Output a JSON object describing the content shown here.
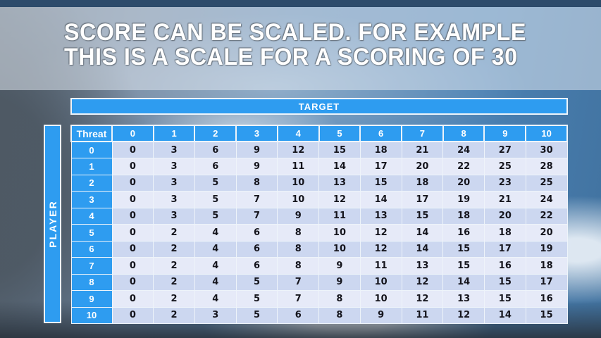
{
  "slide": {
    "title": {
      "line1": "SCORE CAN BE SCALED. FOR EXAMPLE",
      "line2": "THIS IS A SCALE FOR A SCORING OF 30"
    },
    "scoring_scale_max": 30
  },
  "table": {
    "target_label": "TARGET",
    "player_label": "PLAYER",
    "corner_label": "Threat",
    "column_headers": [
      "0",
      "1",
      "2",
      "3",
      "4",
      "5",
      "6",
      "7",
      "8",
      "9",
      "10"
    ],
    "rows": [
      {
        "label": "0",
        "values": [
          0,
          3,
          6,
          9,
          12,
          15,
          18,
          21,
          24,
          27,
          30
        ]
      },
      {
        "label": "1",
        "values": [
          0,
          3,
          6,
          9,
          11,
          14,
          17,
          20,
          22,
          25,
          28
        ]
      },
      {
        "label": "2",
        "values": [
          0,
          3,
          5,
          8,
          10,
          13,
          15,
          18,
          20,
          23,
          25
        ]
      },
      {
        "label": "3",
        "values": [
          0,
          3,
          5,
          7,
          10,
          12,
          14,
          17,
          19,
          21,
          24
        ]
      },
      {
        "label": "4",
        "values": [
          0,
          3,
          5,
          7,
          9,
          11,
          13,
          15,
          18,
          20,
          22
        ]
      },
      {
        "label": "5",
        "values": [
          0,
          2,
          4,
          6,
          8,
          10,
          12,
          14,
          16,
          18,
          20
        ]
      },
      {
        "label": "6",
        "values": [
          0,
          2,
          4,
          6,
          8,
          10,
          12,
          14,
          15,
          17,
          19
        ]
      },
      {
        "label": "7",
        "values": [
          0,
          2,
          4,
          6,
          8,
          9,
          11,
          13,
          15,
          16,
          18
        ]
      },
      {
        "label": "8",
        "values": [
          0,
          2,
          4,
          5,
          7,
          9,
          10,
          12,
          14,
          15,
          17
        ]
      },
      {
        "label": "9",
        "values": [
          0,
          2,
          4,
          5,
          7,
          8,
          10,
          12,
          13,
          15,
          16
        ]
      },
      {
        "label": "10",
        "values": [
          0,
          2,
          3,
          5,
          6,
          8,
          9,
          11,
          12,
          14,
          15
        ]
      }
    ]
  },
  "colors": {
    "accent_blue": "#2e9cf0",
    "row_even": "#ccd7f0",
    "row_odd": "#e6eaf8",
    "cell_text": "#15151d",
    "top_bar": "#2d4b6b",
    "border_white": "#eef4fa"
  }
}
